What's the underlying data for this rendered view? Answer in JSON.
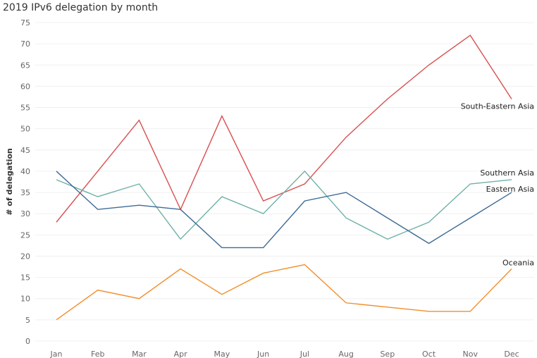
{
  "chart_data": {
    "type": "line",
    "title": "2019 IPv6 delegation by month",
    "xlabel": "",
    "ylabel": "# of delegation",
    "categories": [
      "Jan",
      "Feb",
      "Mar",
      "Apr",
      "May",
      "Jun",
      "Jul",
      "Aug",
      "Sep",
      "Oct",
      "Nov",
      "Dec"
    ],
    "ylim": [
      0,
      75
    ],
    "yticks": [
      0,
      5,
      10,
      15,
      20,
      25,
      30,
      35,
      40,
      45,
      50,
      55,
      60,
      65,
      70,
      75
    ],
    "grid": true,
    "legend": "inline-end-labels",
    "series": [
      {
        "name": "South-Eastern Asia",
        "color": "#d94f4f",
        "values": [
          28,
          40,
          52,
          31,
          53,
          33,
          37,
          48,
          57,
          65,
          72,
          57
        ]
      },
      {
        "name": "Southern Asia",
        "color": "#6fb1a8",
        "values": [
          38,
          34,
          37,
          24,
          34,
          30,
          40,
          29,
          24,
          28,
          37,
          38
        ]
      },
      {
        "name": "Eastern Asia",
        "color": "#3e6a95",
        "values": [
          40,
          31,
          32,
          31,
          22,
          22,
          33,
          35,
          29,
          23,
          29,
          35
        ]
      },
      {
        "name": "Oceania",
        "color": "#f28e2b",
        "values": [
          5,
          12,
          10,
          17,
          11,
          16,
          18,
          9,
          8,
          7,
          7,
          17
        ]
      }
    ]
  }
}
